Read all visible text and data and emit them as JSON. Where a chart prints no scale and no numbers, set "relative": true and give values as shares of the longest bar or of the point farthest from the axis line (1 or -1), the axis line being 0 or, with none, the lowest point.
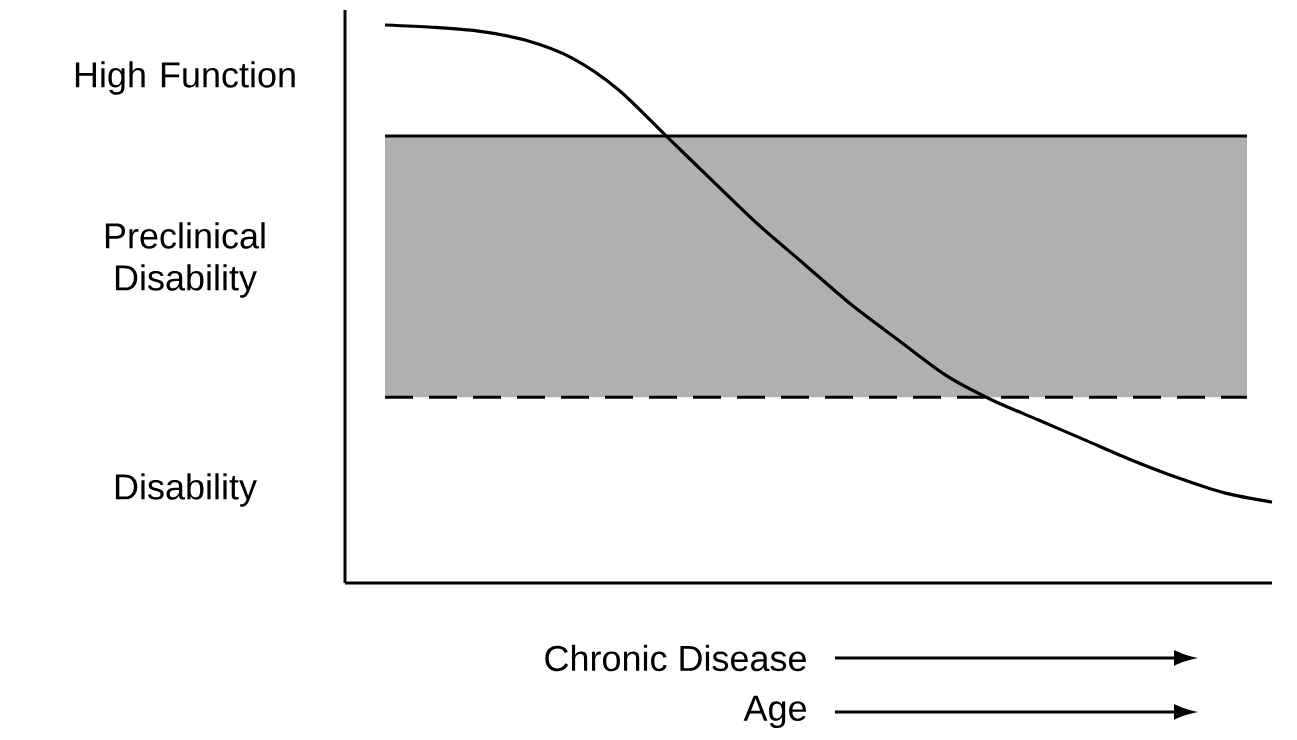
{
  "chart_data": {
    "type": "line",
    "relative": true,
    "color": "#000000",
    "categories": [
      null,
      null,
      null,
      null,
      null,
      null,
      null,
      null,
      null,
      null,
      null,
      null,
      null,
      null,
      null,
      null,
      null,
      null,
      null,
      null
    ],
    "values": [
      1.0,
      0.996,
      0.989,
      0.973,
      0.941,
      0.884,
      0.803,
      0.722,
      0.642,
      0.57,
      0.498,
      0.435,
      0.373,
      0.328,
      0.292,
      0.256,
      0.22,
      0.188,
      0.161,
      0.145
    ],
    "bands": [
      {
        "axis": "y",
        "from": 0.333,
        "to": 0.801,
        "color": "#b0b0b0"
      }
    ],
    "ref_lines": [
      {
        "axis": "y",
        "value": 0.801,
        "line_style": "solid"
      },
      {
        "axis": "y",
        "value": 0.333,
        "line_style": "dashed"
      }
    ],
    "xlabel": "Chronic Disease",
    "annotations": [
      "High Function",
      "Preclinical Disability",
      "Disability",
      "Age"
    ]
  }
}
